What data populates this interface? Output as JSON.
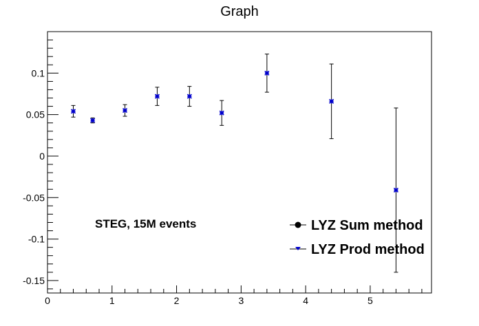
{
  "chart_data": {
    "type": "scatter",
    "title": "Graph",
    "xlabel": "",
    "ylabel": "",
    "xlim": [
      0,
      5.95
    ],
    "ylim": [
      -0.165,
      0.15
    ],
    "x_ticks": [
      0,
      1,
      2,
      3,
      4,
      5
    ],
    "x_tick_labels": [
      "0",
      "1",
      "2",
      "3",
      "4",
      "5"
    ],
    "y_ticks": [
      -0.15,
      -0.1,
      -0.05,
      0,
      0.05,
      0.1
    ],
    "y_tick_labels": [
      "-0.15",
      "-0.1",
      "-0.05",
      "0",
      "0.05",
      "0.1"
    ],
    "grid": false,
    "legend_position": "bottom-right",
    "annotation": "STEG, 15M events",
    "series": [
      {
        "name": "LYZ Sum method",
        "color": "#000000",
        "marker": "circle",
        "x": [],
        "y": [],
        "err": []
      },
      {
        "name": "LYZ Prod method",
        "color": "#0000cc",
        "marker": "star",
        "x": [
          0.4,
          0.7,
          1.2,
          1.7,
          2.2,
          2.7,
          3.4,
          4.4,
          5.4
        ],
        "y": [
          0.054,
          0.043,
          0.055,
          0.072,
          0.072,
          0.052,
          0.1,
          0.066,
          -0.041
        ],
        "err": [
          0.007,
          0.003,
          0.007,
          0.011,
          0.012,
          0.015,
          0.023,
          0.045,
          0.099
        ]
      }
    ]
  }
}
